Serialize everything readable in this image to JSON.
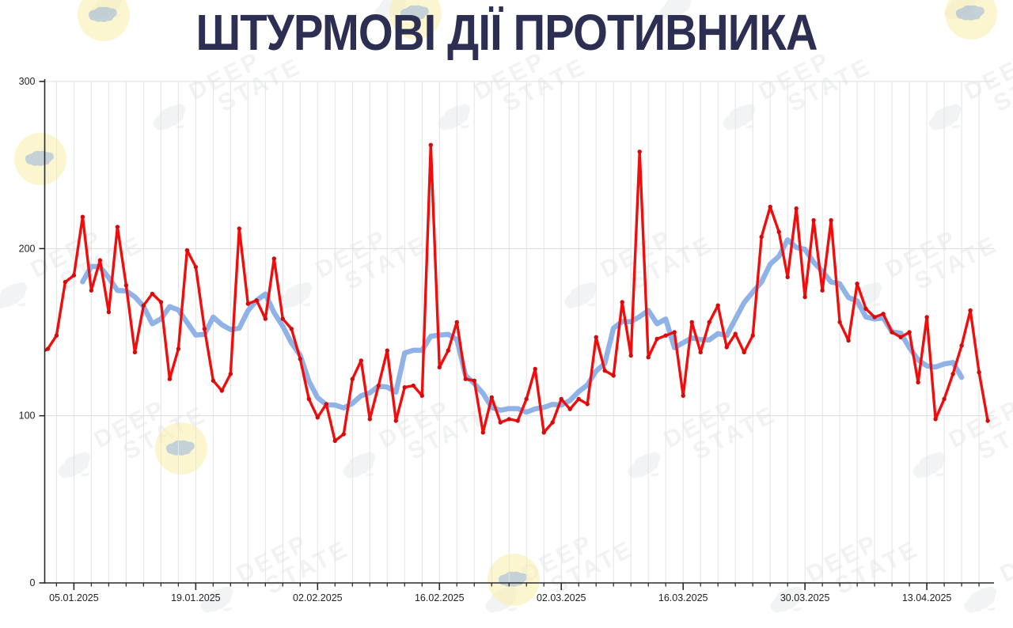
{
  "title": "ШТУРМОВІ ДІЇ ПРОТИВНИКА",
  "watermark": {
    "line1": "DEEP",
    "line2": "STATE"
  },
  "colors": {
    "title": "#2d2f52",
    "red_line": "#f20d0d",
    "red_dot": "#d40b0b",
    "blue_line": "#90b3e7",
    "grid": "#e3e3e7",
    "hgrid": "#dcdce1",
    "axis": "#2a2a2a",
    "tick_label": "#222222"
  },
  "chart_data": {
    "type": "line",
    "title": "ШТУРМОВІ ДІЇ ПРОТИВНИКА",
    "start_date": "01.01.2025",
    "end_date": "20.04.2025",
    "points_per_day": 1,
    "ylim": [
      0,
      300
    ],
    "y_tick_labels": [
      "0",
      "100",
      "200",
      "300"
    ],
    "y_tick_values": [
      0,
      100,
      200,
      300
    ],
    "x_tick_labels": [
      "05.01.2025",
      "19.01.2025",
      "02.02.2025",
      "16.02.2025",
      "02.03.2025",
      "16.03.2025",
      "30.03.2025",
      "13.04.2025"
    ],
    "x_tick_indices": [
      4,
      18,
      32,
      46,
      60,
      74,
      88,
      102
    ],
    "grid": "vertical gridlines and axis ticks every 2 days; horizontal gridlines every 100",
    "legend": "none",
    "series": [
      {
        "name": "daily-assault-actions",
        "style": "red line with dot markers",
        "values": [
          137,
          140,
          148,
          180,
          184,
          219,
          175,
          193,
          162,
          213,
          178,
          138,
          166,
          173,
          168,
          122,
          140,
          199,
          189,
          152,
          121,
          115,
          125,
          212,
          167,
          169,
          158,
          194,
          158,
          152,
          134,
          110,
          99,
          107,
          85,
          89,
          122,
          133,
          98,
          118,
          139,
          97,
          117,
          118,
          112,
          262,
          129,
          139,
          156,
          122,
          121,
          90,
          111,
          96,
          98,
          97,
          110,
          128,
          90,
          96,
          110,
          104,
          110,
          107,
          147,
          127,
          124,
          168,
          136,
          258,
          135,
          146,
          148,
          150,
          112,
          156,
          138,
          156,
          166,
          141,
          149,
          138,
          148,
          207,
          225,
          210,
          183,
          224,
          171,
          217,
          175,
          217,
          156,
          145,
          179,
          164,
          159,
          161,
          150,
          147,
          150,
          120,
          159,
          98,
          110,
          125,
          142,
          163,
          126,
          97
        ]
      },
      {
        "name": "7-day-moving-average",
        "style": "thick light-blue smoothed line",
        "derived": "centered 7-day moving average of daily-assault-actions",
        "window": 7,
        "draw_from_index": 5,
        "draw_to_index": 106
      }
    ]
  }
}
